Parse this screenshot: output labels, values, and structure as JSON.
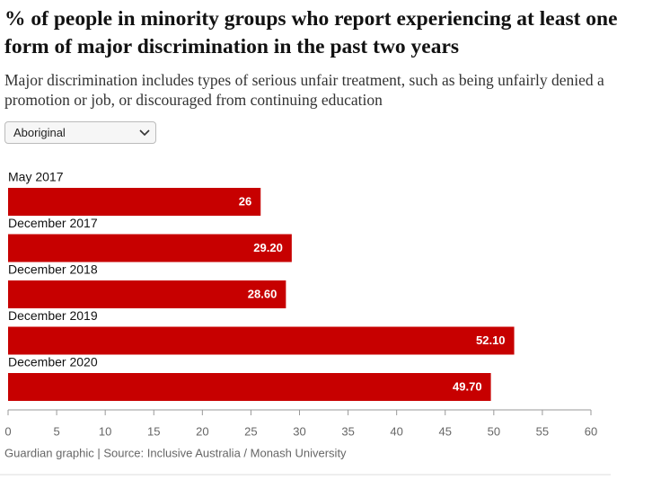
{
  "chart_data": {
    "type": "bar",
    "orientation": "horizontal",
    "title": "% of people in minority groups who report experiencing at least one form of major discrimination in the past two years",
    "subtitle": "Major discrimination includes types of serious unfair treatment, such as being unfairly denied a promotion or job, or discouraged from continuing education",
    "categories": [
      "May 2017",
      "December 2017",
      "December 2018",
      "December 2019",
      "December 2020"
    ],
    "values": [
      26,
      29.2,
      28.6,
      52.1,
      49.7
    ],
    "value_labels": [
      "26",
      "29.20",
      "28.60",
      "52.10",
      "49.70"
    ],
    "color": "#c70000",
    "xlim": [
      0,
      60
    ],
    "xticks": [
      0,
      5,
      10,
      15,
      20,
      25,
      30,
      35,
      40,
      45,
      50,
      55,
      60
    ],
    "source": "Guardian graphic | Source: Inclusive Australia / Monash University"
  },
  "dropdown": {
    "selected": "Aboriginal"
  }
}
